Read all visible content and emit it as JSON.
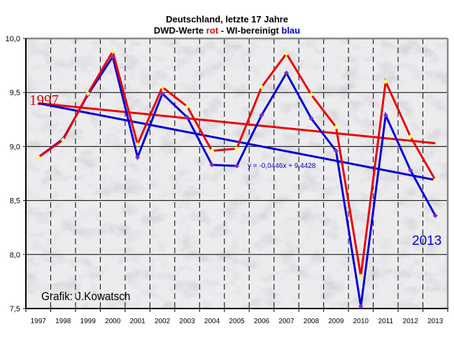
{
  "title": {
    "line1": "Deutschland, letzte 17 Jahre",
    "line2_a": "DWD-Werte ",
    "line2_red": "rot",
    "line2_b": " - WI-bereinigt ",
    "line2_blue": "blau"
  },
  "colors": {
    "red": "#ee0000",
    "blue": "#0000dd",
    "marker": "#ffff66"
  },
  "chart_data": {
    "type": "line",
    "title": "Deutschland, letzte 17 Jahre — DWD-Werte rot - WI-bereinigt blau",
    "categories": [
      "1997",
      "1998",
      "1999",
      "2000",
      "2001",
      "2002",
      "2003",
      "2004",
      "2005",
      "2006",
      "2007",
      "2008",
      "2009",
      "2010",
      "2011",
      "2012",
      "2013"
    ],
    "ylim": [
      7.5,
      10.0
    ],
    "yticks": [
      "10,0",
      "9,5",
      "9,0",
      "8,5",
      "8,0",
      "7,5"
    ],
    "ytick_values": [
      10.0,
      9.5,
      9.0,
      8.5,
      8.0,
      7.5
    ],
    "grid": true,
    "series": [
      {
        "name": "DWD-Werte",
        "color": "red",
        "values": [
          8.9,
          9.06,
          9.49,
          9.88,
          9.02,
          9.55,
          9.37,
          8.96,
          8.98,
          9.55,
          9.86,
          9.48,
          9.18,
          7.8,
          9.6,
          9.09,
          8.69
        ]
      },
      {
        "name": "WI-bereinigt",
        "color": "blue",
        "values": [
          8.9,
          9.07,
          9.48,
          9.83,
          8.9,
          9.49,
          9.27,
          8.83,
          8.82,
          9.29,
          9.68,
          9.26,
          8.96,
          7.52,
          9.29,
          8.78,
          8.36
        ]
      }
    ],
    "trendlines": [
      {
        "series": "DWD-Werte",
        "color": "red",
        "start": 9.4,
        "end": 9.03
      },
      {
        "series": "WI-bereinigt",
        "color": "blue",
        "start": 9.4,
        "end": 8.69,
        "equation": "y = -0,0446x + 9,4428"
      }
    ],
    "annotations": {
      "start_label": "1997",
      "end_label": "2013",
      "credit": "Grafik: J.Kowatsch"
    }
  }
}
